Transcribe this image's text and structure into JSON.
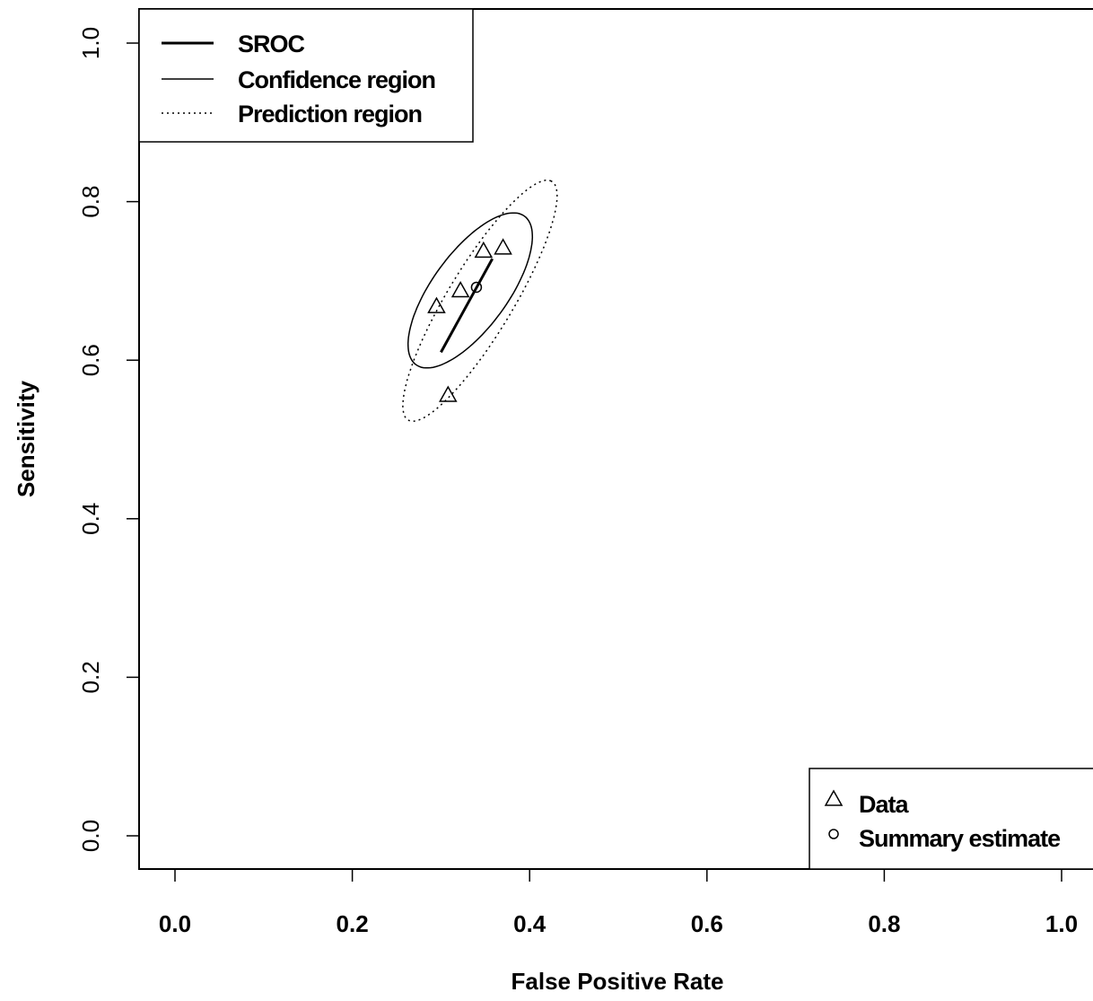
{
  "chart_data": {
    "type": "scatter",
    "title": "",
    "xlabel": "False Positive Rate",
    "ylabel": "Sensitivity",
    "xlim": [
      -0.04,
      1.04
    ],
    "ylim": [
      -0.04,
      1.04
    ],
    "x_ticks": [
      "0.0",
      "0.2",
      "0.4",
      "0.6",
      "0.8",
      "1.0"
    ],
    "y_ticks": [
      "0.0",
      "0.2",
      "0.4",
      "0.6",
      "0.8",
      "1.0"
    ],
    "grid": false,
    "series": [
      {
        "name": "Data",
        "marker": "triangle",
        "points": [
          {
            "x": 0.295,
            "y": 0.668
          },
          {
            "x": 0.322,
            "y": 0.688
          },
          {
            "x": 0.348,
            "y": 0.738
          },
          {
            "x": 0.37,
            "y": 0.742
          },
          {
            "x": 0.308,
            "y": 0.556
          }
        ]
      },
      {
        "name": "Summary estimate",
        "marker": "circle",
        "points": [
          {
            "x": 0.34,
            "y": 0.692
          }
        ]
      },
      {
        "name": "SROC",
        "style": "thick-solid",
        "points": [
          {
            "x": 0.3,
            "y": 0.61
          },
          {
            "x": 0.358,
            "y": 0.728
          }
        ]
      },
      {
        "name": "Confidence region",
        "style": "solid",
        "ellipse": {
          "cx": 0.333,
          "cy": 0.688,
          "rx": 0.112,
          "ry": 0.044,
          "angle_deg": 58
        }
      },
      {
        "name": "Prediction region",
        "style": "dotted",
        "ellipse": {
          "cx": 0.344,
          "cy": 0.675,
          "rx": 0.171,
          "ry": 0.038,
          "angle_deg": 62
        }
      }
    ],
    "legends": [
      {
        "placement": "top-left",
        "entries": [
          "SROC",
          "Confidence region",
          "Prediction region"
        ]
      },
      {
        "placement": "bottom-right",
        "entries": [
          "Data",
          "Summary estimate"
        ]
      }
    ]
  }
}
